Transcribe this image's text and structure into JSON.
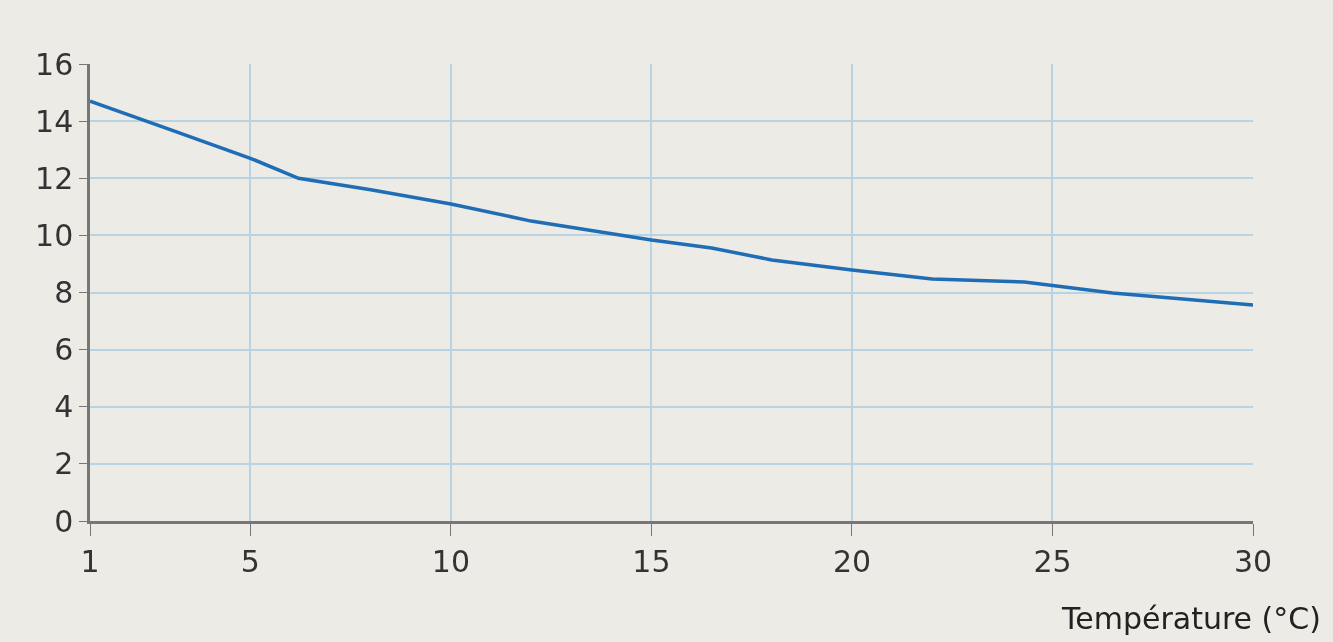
{
  "chart_data": {
    "type": "line",
    "xlabel": "Température (°C)",
    "x": [
      1,
      3,
      5,
      6.2,
      8,
      10,
      12,
      15,
      16.5,
      18,
      20,
      22,
      24.3,
      26.5,
      30
    ],
    "series": [
      {
        "color": "#1f6db5",
        "values": [
          14.7,
          13.7,
          12.7,
          12.0,
          11.6,
          11.1,
          10.5,
          9.84,
          9.56,
          9.14,
          8.79,
          8.47,
          8.37,
          7.98,
          7.56
        ]
      }
    ],
    "xlim": [
      1,
      30
    ],
    "xticks": [
      1,
      5,
      10,
      15,
      20,
      25,
      30
    ],
    "ylim": [
      0,
      16
    ],
    "yticks": [
      0,
      2,
      4,
      6,
      8,
      10,
      12,
      14,
      16
    ],
    "grid": true,
    "marker": "none",
    "line_style": "solid"
  }
}
